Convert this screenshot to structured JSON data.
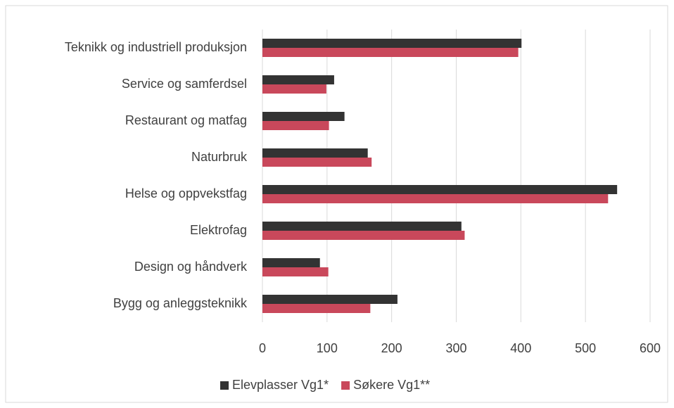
{
  "chart_data": {
    "type": "bar",
    "orientation": "horizontal",
    "categories": [
      "Teknikk og industriell produksjon",
      "Service og samferdsel",
      "Restaurant og matfag",
      "Naturbruk",
      "Helse og oppvekstfag",
      "Elektrofag",
      "Design og håndverk",
      "Bygg og anleggsteknikk"
    ],
    "series": [
      {
        "name": "Elevplasser Vg1*",
        "color": "#333333",
        "values": [
          401,
          111,
          127,
          163,
          549,
          308,
          89,
          209
        ]
      },
      {
        "name": "Søkere Vg1**",
        "color": "#c9485b",
        "values": [
          396,
          99,
          103,
          169,
          535,
          313,
          102,
          167
        ]
      }
    ],
    "xlim": [
      0,
      600
    ],
    "xticks": [
      0,
      100,
      200,
      300,
      400,
      500,
      600
    ],
    "grid": true,
    "legend": "bottom"
  }
}
